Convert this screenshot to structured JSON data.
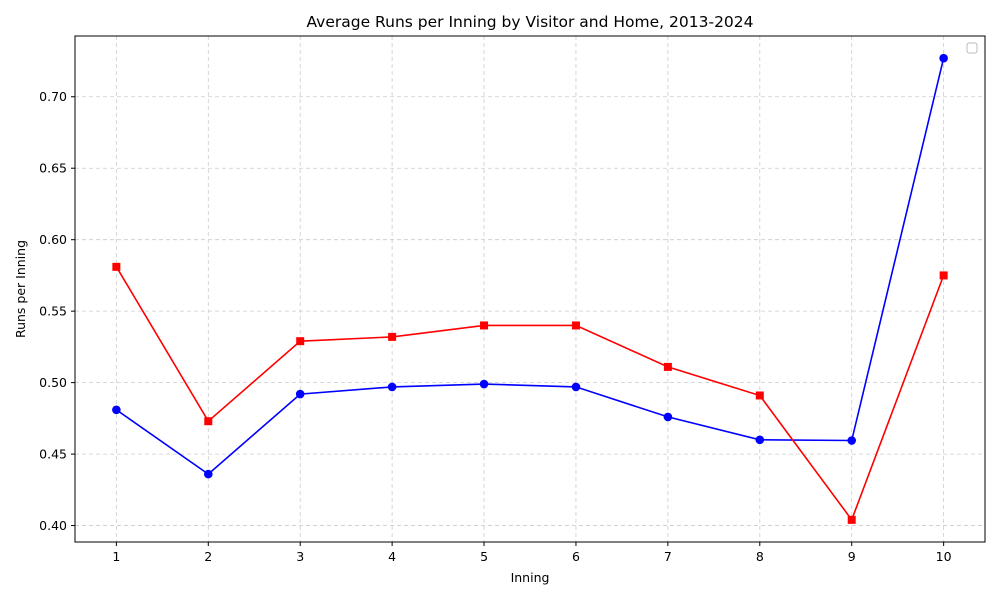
{
  "chart_data": {
    "type": "line",
    "title": "Average Runs per Inning by Visitor and Home, 2013-2024",
    "xlabel": "Inning",
    "ylabel": "Runs per Inning",
    "x": [
      1,
      2,
      3,
      4,
      5,
      6,
      7,
      8,
      9,
      10
    ],
    "xticks": [
      "1",
      "2",
      "3",
      "4",
      "5",
      "6",
      "7",
      "8",
      "9",
      "10"
    ],
    "yticks": [
      "0.40",
      "0.45",
      "0.50",
      "0.55",
      "0.60",
      "0.65",
      "0.70"
    ],
    "xlim": [
      0.55,
      10.45
    ],
    "ylim": [
      0.3885,
      0.7425
    ],
    "grid": true,
    "legend": "top-right (empty)",
    "series": [
      {
        "name": "blue",
        "color": "#0000ff",
        "marker": "circle",
        "values": [
          0.481,
          0.436,
          0.492,
          0.497,
          0.499,
          0.497,
          0.476,
          0.46,
          0.4595,
          0.727
        ]
      },
      {
        "name": "red",
        "color": "#ff0000",
        "marker": "square",
        "values": [
          0.581,
          0.473,
          0.529,
          0.532,
          0.54,
          0.54,
          0.511,
          0.491,
          0.404,
          0.575
        ]
      }
    ]
  }
}
